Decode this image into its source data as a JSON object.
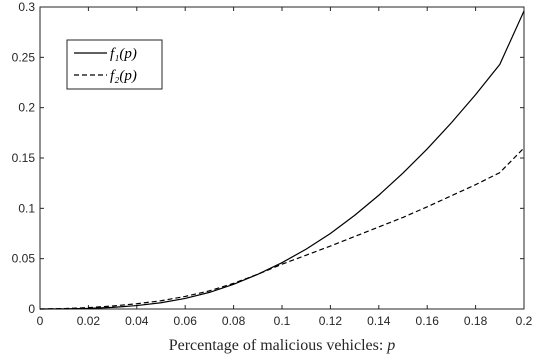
{
  "chart_data": {
    "type": "line",
    "xlabel": "Percentage of malicious vehicles: ",
    "xlabel_var": "p",
    "ylabel": "",
    "title": "",
    "xlim": [
      0,
      0.2
    ],
    "ylim": [
      0,
      0.3
    ],
    "xticks": [
      "0",
      "0.02",
      "0.04",
      "0.06",
      "0.08",
      "0.1",
      "0.12",
      "0.14",
      "0.16",
      "0.18",
      "0.2"
    ],
    "yticks": [
      "0",
      "0.05",
      "0.1",
      "0.15",
      "0.2",
      "0.25",
      "0.3"
    ],
    "grid": false,
    "legend_position": "top-left",
    "series": [
      {
        "name": "f₁(p)",
        "style": "solid",
        "color": "#000000",
        "x": [
          0,
          0.01,
          0.02,
          0.03,
          0.04,
          0.05,
          0.06,
          0.07,
          0.08,
          0.09,
          0.1,
          0.11,
          0.12,
          0.13,
          0.14,
          0.15,
          0.16,
          0.17,
          0.18,
          0.19,
          0.2
        ],
        "y": [
          0,
          0.0002,
          0.0006,
          0.0016,
          0.0034,
          0.0062,
          0.0105,
          0.0165,
          0.0245,
          0.0345,
          0.046,
          0.0595,
          0.075,
          0.093,
          0.113,
          0.135,
          0.159,
          0.185,
          0.213,
          0.243,
          0.296
        ]
      },
      {
        "name": "f₂(p)",
        "style": "dashed",
        "color": "#000000",
        "x": [
          0,
          0.01,
          0.02,
          0.03,
          0.04,
          0.05,
          0.06,
          0.07,
          0.08,
          0.09,
          0.1,
          0.11,
          0.12,
          0.13,
          0.14,
          0.15,
          0.16,
          0.17,
          0.18,
          0.19,
          0.2
        ],
        "y": [
          0,
          0.0004,
          0.0014,
          0.003,
          0.0052,
          0.0082,
          0.0125,
          0.018,
          0.0255,
          0.0345,
          0.0445,
          0.0535,
          0.0625,
          0.072,
          0.0815,
          0.091,
          0.1015,
          0.1125,
          0.1235,
          0.1355,
          0.16
        ]
      }
    ]
  }
}
